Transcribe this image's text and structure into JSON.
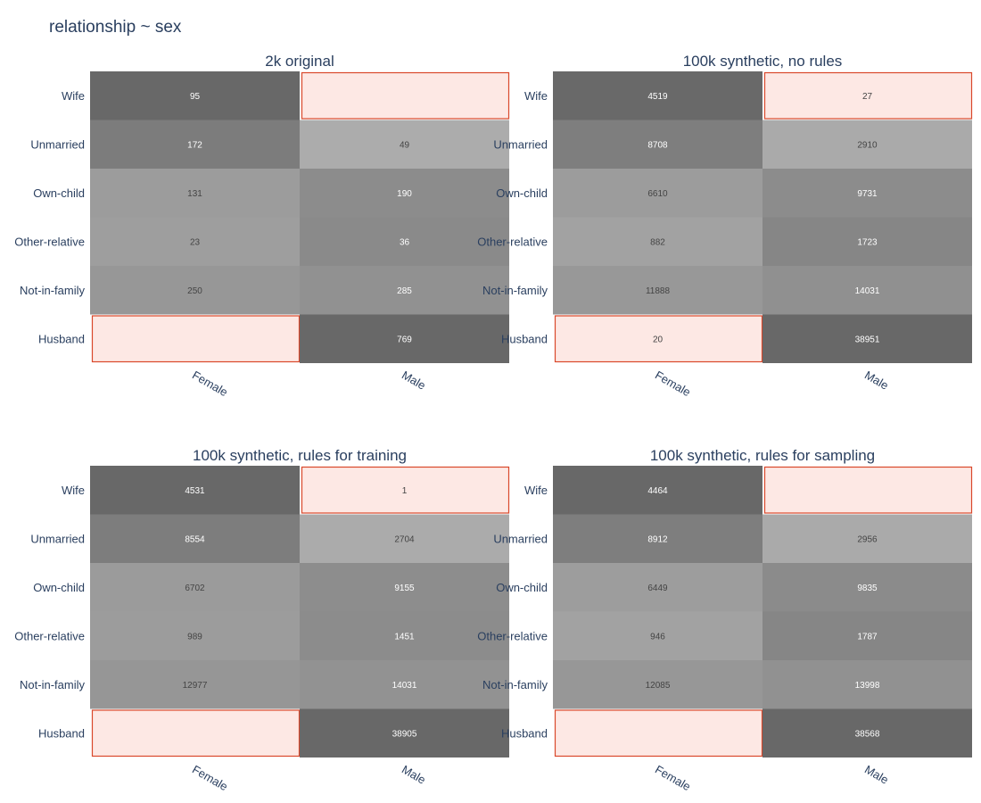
{
  "title": "relationship ~ sex",
  "colors": {
    "text": "#2a3f5f",
    "highlight_fill": "#fde8e4",
    "highlight_stroke": "#d9482b",
    "dark_label": "#ffffff",
    "light_label": "#444444"
  },
  "chart_data": [
    {
      "type": "heatmap",
      "title": "2k original",
      "x": [
        "Female",
        "Male"
      ],
      "y": [
        "Wife",
        "Unmarried",
        "Own-child",
        "Other-relative",
        "Not-in-family",
        "Husband"
      ],
      "values": [
        [
          95,
          null
        ],
        [
          172,
          49
        ],
        [
          131,
          190
        ],
        [
          23,
          36
        ],
        [
          250,
          285
        ],
        [
          null,
          769
        ]
      ],
      "highlighted_cells": [
        [
          0,
          1
        ],
        [
          5,
          0
        ]
      ]
    },
    {
      "type": "heatmap",
      "title": "100k synthetic, no rules",
      "x": [
        "Female",
        "Male"
      ],
      "y": [
        "Wife",
        "Unmarried",
        "Own-child",
        "Other-relative",
        "Not-in-family",
        "Husband"
      ],
      "values": [
        [
          4519,
          27
        ],
        [
          8708,
          2910
        ],
        [
          6610,
          9731
        ],
        [
          882,
          1723
        ],
        [
          11888,
          14031
        ],
        [
          20,
          38951
        ]
      ],
      "highlighted_cells": [
        [
          0,
          1
        ],
        [
          5,
          0
        ]
      ]
    },
    {
      "type": "heatmap",
      "title": "100k synthetic, rules for training",
      "x": [
        "Female",
        "Male"
      ],
      "y": [
        "Wife",
        "Unmarried",
        "Own-child",
        "Other-relative",
        "Not-in-family",
        "Husband"
      ],
      "values": [
        [
          4531,
          1
        ],
        [
          8554,
          2704
        ],
        [
          6702,
          9155
        ],
        [
          989,
          1451
        ],
        [
          12977,
          14031
        ],
        [
          null,
          38905
        ]
      ],
      "highlighted_cells": [
        [
          0,
          1
        ],
        [
          5,
          0
        ]
      ]
    },
    {
      "type": "heatmap",
      "title": "100k synthetic, rules for sampling",
      "x": [
        "Female",
        "Male"
      ],
      "y": [
        "Wife",
        "Unmarried",
        "Own-child",
        "Other-relative",
        "Not-in-family",
        "Husband"
      ],
      "values": [
        [
          4464,
          null
        ],
        [
          8912,
          2956
        ],
        [
          6449,
          9835
        ],
        [
          946,
          1787
        ],
        [
          12085,
          13998
        ],
        [
          null,
          38568
        ]
      ],
      "highlighted_cells": [
        [
          0,
          1
        ],
        [
          5,
          0
        ]
      ]
    }
  ]
}
